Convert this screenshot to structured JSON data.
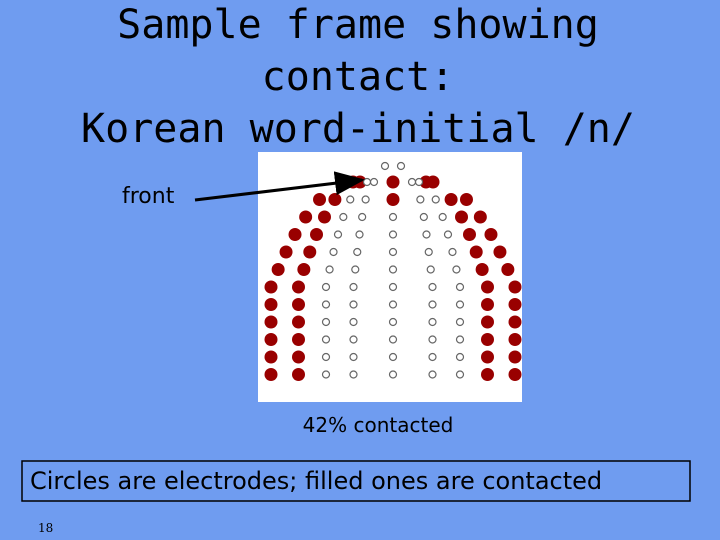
{
  "title": {
    "lines": [
      "Sample frame showing",
      "contact:",
      "Korean word-initial /n/"
    ]
  },
  "figure": {
    "label": "front",
    "caption": "42% contacted"
  },
  "note": "Circles are electrodes; filled ones are contacted",
  "page_number": "18"
}
